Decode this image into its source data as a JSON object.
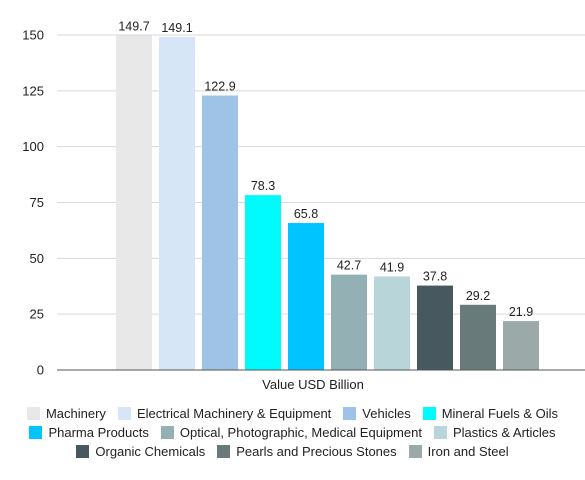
{
  "chart_data": {
    "type": "bar",
    "title": "",
    "xlabel": "Value USD Billion",
    "ylabel": "",
    "ylim": [
      0,
      160
    ],
    "yticks": [
      0,
      25,
      50,
      75,
      100,
      125,
      150
    ],
    "grid": true,
    "legend_position": "bottom",
    "categories": [
      "Machinery",
      "Electrical Machinery & Equipment",
      "Vehicles",
      "Mineral Fuels & Oils",
      "Pharma Products",
      "Optical, Photographic, Medical Equipment",
      "Plastics & Articles",
      "Organic Chemicals",
      "Pearls and Precious Stones",
      "Iron and Steel"
    ],
    "values": [
      149.7,
      149.1,
      122.9,
      78.3,
      65.8,
      42.7,
      41.9,
      37.8,
      29.2,
      21.9
    ],
    "value_labels": [
      "149.7",
      "149.1",
      "122.9",
      "78.3",
      "65.8",
      "42.7",
      "41.9",
      "37.8",
      "29.2",
      "21.9"
    ],
    "colors": [
      "#e8e8e8",
      "#d6e6f7",
      "#9fc3e6",
      "#00fbff",
      "#00c4ff",
      "#93b1b5",
      "#b8d5d9",
      "#48585f",
      "#687a7a",
      "#9ba9a9"
    ]
  }
}
